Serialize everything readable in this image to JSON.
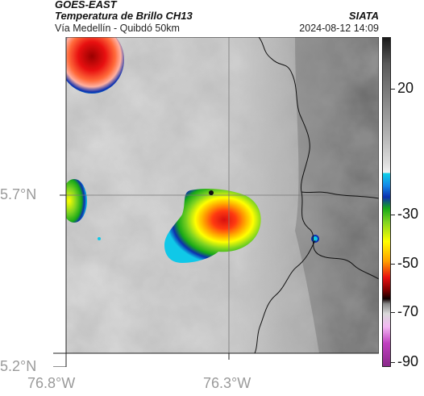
{
  "header": {
    "satellite": "GOES-EAST",
    "product": "Temperatura de Brillo CH13",
    "region": "Vía Medellín - Quibdó 50km",
    "org": "SIATA",
    "datetime": "2024-08-12 14:09"
  },
  "axes": {
    "lat_labels": [
      "5.7°N",
      "5.2°N"
    ],
    "lon_labels": [
      "76.8°W",
      "76.3°W"
    ]
  },
  "colorbar": {
    "labels": [
      "20",
      "-30",
      "-50",
      "-70",
      "-90"
    ]
  },
  "colors": {
    "cloud_cold": "#e81010",
    "cloud_mid": "#ffff00",
    "cloud_green": "#18a818",
    "cloud_blue": "#0b2fb0",
    "background_gray": "#bdbdbd"
  }
}
